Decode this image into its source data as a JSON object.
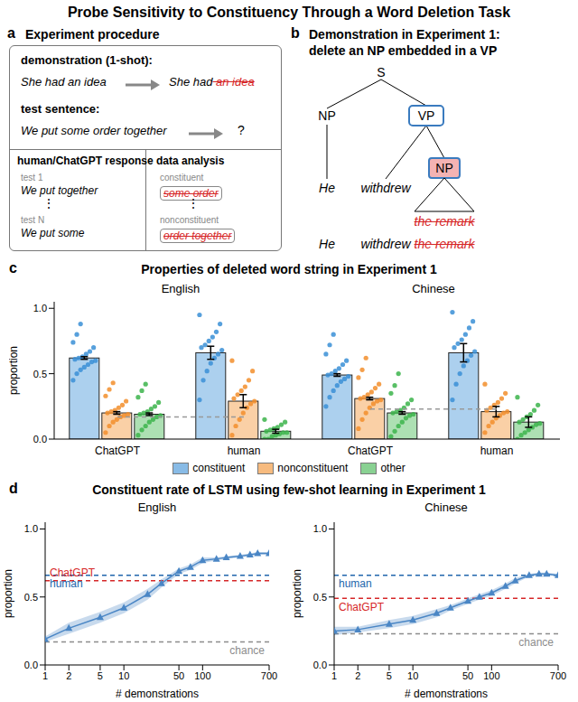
{
  "title": "Probe Sensitivity to Constituency Through a Word Deletion Task",
  "diagrams": {
    "a": {
      "label": "a",
      "title": "Experiment procedure",
      "demonstration": {
        "heading": "demonstration (1-shot):",
        "input": "She had an idea",
        "output": [
          {
            "text": "She had"
          },
          {
            "text": "an idea",
            "deleted": true
          }
        ]
      },
      "test": {
        "heading": "test sentence:",
        "input": "We put some order together",
        "output": "?"
      },
      "response": {
        "heading": "human/ChatGPT response",
        "items": [
          {
            "label": "test 1",
            "text": "We put together"
          },
          {
            "label": "test N",
            "text": "We put some"
          }
        ]
      },
      "analysis": {
        "heading": "data analysis",
        "items": [
          {
            "label": "constituent",
            "deleted": "some order"
          },
          {
            "label": "nonconstituent",
            "deleted": "order together"
          }
        ]
      },
      "ellipsis": "⋮"
    },
    "b": {
      "label": "b",
      "title": "Demonstration in Experiment 1:",
      "subtitle": "delete an NP embedded in a VP",
      "tree": {
        "root": "S",
        "subject": {
          "label": "NP",
          "word": "He"
        },
        "predicate": {
          "label": "VP",
          "verb": "withdrew",
          "object": {
            "label": "NP",
            "words": "the remark",
            "deleted": true
          }
        }
      },
      "output": [
        {
          "text": "He"
        },
        {
          "text": "withdrew"
        },
        {
          "text": "the remark",
          "deleted": true
        }
      ]
    }
  },
  "chart_data": [
    {
      "panel": "c",
      "type": "bar",
      "title": "Properties of deleted word string in Experiment 1",
      "ylabel": "proportion",
      "groups": [
        {
          "name": "English",
          "categories": [
            "ChatGPT",
            "human"
          ],
          "chance": 0.17
        },
        {
          "name": "Chinese",
          "categories": [
            "ChatGPT",
            "human"
          ],
          "chance": 0.23
        }
      ],
      "ylim": [
        0,
        1.05
      ],
      "yticks": [
        {
          "value": 0,
          "label": "0.0"
        },
        {
          "value": 0.5,
          "label": "0.5"
        },
        {
          "value": 1,
          "label": "1.0"
        }
      ],
      "legend": "bottom",
      "series": [
        {
          "name": "constituent",
          "color": "#3a8fd6",
          "values": [
            0.62,
            0.66,
            0.49,
            0.66
          ],
          "errors": [
            0.01,
            0.05,
            0.01,
            0.07
          ],
          "points": [
            [
              0.45,
              0.5,
              0.53,
              0.55,
              0.57,
              0.59,
              0.6,
              0.61,
              0.62,
              0.63,
              0.65,
              0.67,
              0.7,
              0.74,
              0.8,
              0.88
            ],
            [
              0.3,
              0.45,
              0.52,
              0.58,
              0.62,
              0.65,
              0.68,
              0.7,
              0.72,
              0.75,
              0.78,
              0.82,
              0.88,
              0.95
            ],
            [
              0.25,
              0.32,
              0.37,
              0.41,
              0.44,
              0.46,
              0.48,
              0.49,
              0.5,
              0.52,
              0.54,
              0.57,
              0.6,
              0.65,
              0.72,
              0.8
            ],
            [
              0.3,
              0.42,
              0.5,
              0.56,
              0.6,
              0.64,
              0.67,
              0.7,
              0.73,
              0.76,
              0.8,
              0.85,
              0.9,
              0.97
            ]
          ]
        },
        {
          "name": "nonconstituent",
          "color": "#f28e2b",
          "values": [
            0.2,
            0.29,
            0.31,
            0.21
          ],
          "errors": [
            0.01,
            0.05,
            0.01,
            0.04
          ],
          "points": [
            [
              0.05,
              0.1,
              0.13,
              0.15,
              0.17,
              0.18,
              0.19,
              0.2,
              0.21,
              0.22,
              0.24,
              0.26,
              0.29,
              0.33,
              0.38,
              0.43
            ],
            [
              0.03,
              0.1,
              0.15,
              0.2,
              0.24,
              0.27,
              0.29,
              0.31,
              0.34,
              0.37,
              0.4,
              0.45,
              0.52,
              0.6
            ],
            [
              0.08,
              0.15,
              0.2,
              0.24,
              0.27,
              0.29,
              0.3,
              0.31,
              0.32,
              0.34,
              0.36,
              0.39,
              0.42,
              0.47,
              0.53,
              0.62
            ],
            [
              0.05,
              0.1,
              0.13,
              0.16,
              0.18,
              0.2,
              0.21,
              0.22,
              0.24,
              0.26,
              0.28,
              0.31,
              0.35,
              0.42
            ]
          ]
        },
        {
          "name": "other",
          "color": "#3cb44b",
          "values": [
            0.19,
            0.06,
            0.2,
            0.13
          ],
          "errors": [
            0.01,
            0.015,
            0.01,
            0.04
          ],
          "points": [
            [
              0.03,
              0.07,
              0.1,
              0.13,
              0.15,
              0.17,
              0.18,
              0.19,
              0.2,
              0.21,
              0.23,
              0.25,
              0.28,
              0.32,
              0.37,
              0.42
            ],
            [
              0,
              0,
              0.02,
              0.03,
              0.04,
              0.05,
              0.05,
              0.06,
              0.07,
              0.08,
              0.09,
              0.11,
              0.13,
              0.15
            ],
            [
              0.02,
              0.06,
              0.1,
              0.13,
              0.16,
              0.18,
              0.19,
              0.2,
              0.21,
              0.22,
              0.24,
              0.27,
              0.3,
              0.35,
              0.41,
              0.5
            ],
            [
              0,
              0.03,
              0.05,
              0.07,
              0.09,
              0.11,
              0.12,
              0.13,
              0.15,
              0.17,
              0.19,
              0.22,
              0.26,
              0.32
            ]
          ]
        }
      ]
    },
    {
      "panel": "d",
      "type": "line",
      "title": "Constituent rate of LSTM using few-shot learning in Experiment 1",
      "subtitle": "English",
      "xlabel": "# demonstrations",
      "ylabel": "proportion",
      "log": "x",
      "x": [
        1,
        2,
        5,
        10,
        20,
        30,
        50,
        70,
        100,
        150,
        200,
        300,
        400,
        500,
        700
      ],
      "xlim": [
        1,
        700
      ],
      "xticks": [
        1,
        2,
        5,
        10,
        50,
        100,
        700
      ],
      "ylim": [
        0,
        1.05
      ],
      "yticks": [
        {
          "value": 0,
          "label": "0.0"
        },
        {
          "value": 0.5,
          "label": "0.5"
        },
        {
          "value": 1,
          "label": "1.0"
        }
      ],
      "color": "#4a86c5",
      "marker": "triangle",
      "values": [
        0.19,
        0.27,
        0.35,
        0.42,
        0.52,
        0.6,
        0.69,
        0.72,
        0.77,
        0.78,
        0.79,
        0.8,
        0.81,
        0.82,
        0.82
      ],
      "band": {
        "lower": [
          0.17,
          0.23,
          0.31,
          0.38,
          0.48,
          0.57,
          0.67,
          0.7,
          0.75,
          0.77,
          0.78,
          0.79,
          0.8,
          0.81,
          0.81
        ],
        "upper": [
          0.21,
          0.31,
          0.39,
          0.46,
          0.56,
          0.63,
          0.71,
          0.74,
          0.79,
          0.79,
          0.8,
          0.81,
          0.82,
          0.83,
          0.83
        ]
      },
      "reference_lines": [
        {
          "label": "human",
          "value": 0.66,
          "color": "#2166ac",
          "line_style": "dashed"
        },
        {
          "label": "ChatGPT",
          "value": 0.62,
          "color": "#d62728",
          "line_style": "dashed"
        },
        {
          "label": "chance",
          "value": 0.17,
          "color": "#8c8c8c",
          "line_style": "dashed"
        }
      ]
    },
    {
      "type": "line",
      "subtitle": "Chinese",
      "xlabel": "# demonstrations",
      "ylabel": "proportion",
      "log": "x",
      "x": [
        1,
        2,
        5,
        10,
        20,
        30,
        50,
        70,
        100,
        150,
        200,
        300,
        400,
        500,
        700
      ],
      "xlim": [
        1,
        700
      ],
      "xticks": [
        1,
        2,
        5,
        10,
        50,
        100,
        700
      ],
      "ylim": [
        0,
        1.05
      ],
      "yticks": [
        {
          "value": 0,
          "label": "0.0"
        },
        {
          "value": 0.5,
          "label": "0.5"
        },
        {
          "value": 1,
          "label": "1.0"
        }
      ],
      "color": "#4a86c5",
      "marker": "triangle",
      "values": [
        0.25,
        0.26,
        0.3,
        0.33,
        0.38,
        0.42,
        0.47,
        0.5,
        0.53,
        0.58,
        0.62,
        0.66,
        0.67,
        0.67,
        0.66
      ],
      "band": {
        "lower": [
          0.22,
          0.24,
          0.27,
          0.3,
          0.35,
          0.4,
          0.45,
          0.48,
          0.51,
          0.56,
          0.6,
          0.65,
          0.66,
          0.66,
          0.65
        ],
        "upper": [
          0.28,
          0.28,
          0.33,
          0.36,
          0.41,
          0.44,
          0.49,
          0.52,
          0.55,
          0.6,
          0.64,
          0.67,
          0.68,
          0.68,
          0.67
        ]
      },
      "reference_lines": [
        {
          "label": "human",
          "value": 0.66,
          "color": "#2166ac",
          "line_style": "dashed"
        },
        {
          "label": "ChatGPT",
          "value": 0.49,
          "color": "#d62728",
          "line_style": "dashed"
        },
        {
          "label": "chance",
          "value": 0.23,
          "color": "#8c8c8c",
          "line_style": "dashed"
        }
      ]
    }
  ]
}
